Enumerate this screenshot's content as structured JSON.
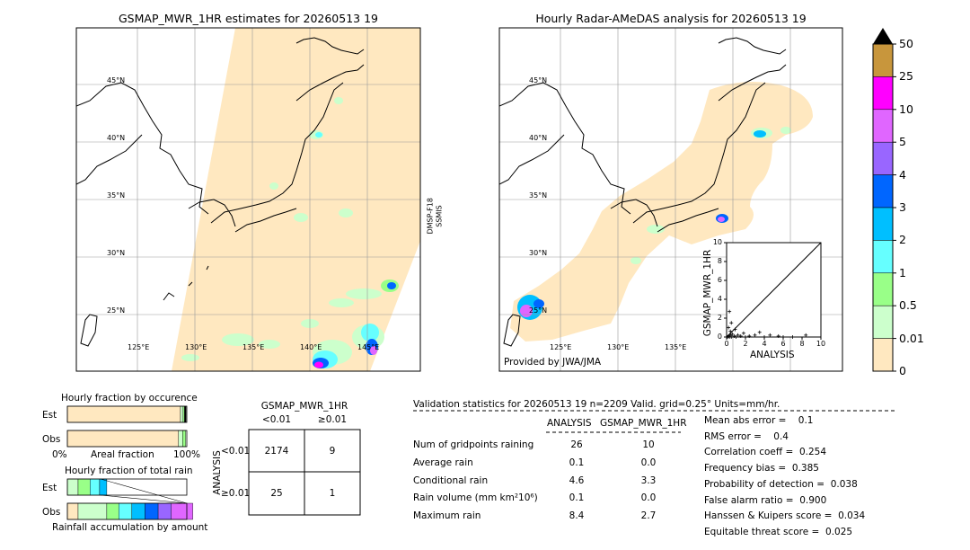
{
  "left_map": {
    "title": "GSMAP_MWR_1HR estimates for 20260513 19",
    "lat_labels": [
      "45°N",
      "40°N",
      "35°N",
      "30°N",
      "25°N"
    ],
    "lon_labels": [
      "125°E",
      "130°E",
      "135°E",
      "140°E",
      "145°E"
    ],
    "sensor_labels": [
      "DMSP-F18",
      "SSMIS"
    ]
  },
  "right_map": {
    "title": "Hourly Radar-AMeDAS analysis for 20260513 19",
    "lat_labels": [
      "45°N",
      "40°N",
      "35°N",
      "30°N",
      "25°N"
    ],
    "lon_labels": [
      "125°E",
      "130°E",
      "135°E"
    ],
    "credit": "Provided by JWA/JMA"
  },
  "colorbar": {
    "labels": [
      "50",
      "25",
      "10",
      "5",
      "4",
      "3",
      "2",
      "1",
      "0.5",
      "0.01",
      "0"
    ],
    "colors": [
      "#c8963c",
      "#ff00ff",
      "#e066ff",
      "#9966ff",
      "#0066ff",
      "#00bfff",
      "#66ffff",
      "#99ff88",
      "#ccffcc",
      "#ffe8c0"
    ]
  },
  "chart_data": [
    {
      "type": "scatter",
      "xlabel": "ANALYSIS",
      "ylabel": "GSMAP_MWR_1HR",
      "xlim": [
        0,
        10
      ],
      "ylim": [
        0,
        10
      ],
      "xticks": [
        "0",
        "2",
        "4",
        "6",
        "8",
        "10"
      ],
      "yticks": [
        "0",
        "2",
        "4",
        "6",
        "8",
        "10"
      ],
      "points": [
        {
          "x": 0.1,
          "y": 0.0
        },
        {
          "x": 0.2,
          "y": 0.1
        },
        {
          "x": 0.3,
          "y": 0.0
        },
        {
          "x": 0.4,
          "y": 0.2
        },
        {
          "x": 0.5,
          "y": 0.0
        },
        {
          "x": 0.6,
          "y": 0.3
        },
        {
          "x": 0.8,
          "y": 0.1
        },
        {
          "x": 1.0,
          "y": 0.0
        },
        {
          "x": 1.2,
          "y": 0.2
        },
        {
          "x": 0.3,
          "y": 2.7
        },
        {
          "x": 0.5,
          "y": 1.5
        },
        {
          "x": 0.2,
          "y": 1.0
        },
        {
          "x": 0.4,
          "y": 0.6
        },
        {
          "x": 1.5,
          "y": 0.1
        },
        {
          "x": 2.0,
          "y": 0.0
        },
        {
          "x": 2.4,
          "y": 0.1
        },
        {
          "x": 3.5,
          "y": 0.5
        },
        {
          "x": 4.0,
          "y": 0.0
        },
        {
          "x": 4.6,
          "y": 0.2
        },
        {
          "x": 5.5,
          "y": 0.1
        },
        {
          "x": 6.0,
          "y": 0.0
        },
        {
          "x": 8.4,
          "y": 0.2
        },
        {
          "x": 7.0,
          "y": 0.0
        },
        {
          "x": 0.9,
          "y": 0.8
        },
        {
          "x": 1.8,
          "y": 0.4
        },
        {
          "x": 3.0,
          "y": 0.2
        }
      ]
    },
    {
      "type": "bar",
      "title": "Hourly fraction by occurence",
      "categories": [
        "Est",
        "Obs"
      ],
      "xticks": [
        "0%",
        "100%"
      ],
      "xlabel": "Areal fraction",
      "segments": {
        "Est": [
          {
            "value": 0.947,
            "color": "#ffe8c0"
          },
          {
            "value": 0.022,
            "color": "#ccffcc"
          },
          {
            "value": 0.012,
            "color": "#99ff88"
          },
          {
            "value": 0.012,
            "color": "#000000"
          }
        ],
        "Obs": [
          {
            "value": 0.93,
            "color": "#ffe8c0"
          },
          {
            "value": 0.035,
            "color": "#ccffcc"
          },
          {
            "value": 0.025,
            "color": "#99ff88"
          }
        ]
      }
    },
    {
      "type": "bar",
      "title": "Hourly fraction of total rain",
      "categories": [
        "Est",
        "Obs"
      ],
      "xlabel": "Rainfall accumulation by amount",
      "segments": {
        "Est": [
          {
            "value": 0.09,
            "color": "#ccffcc"
          },
          {
            "value": 0.1,
            "color": "#99ff88"
          },
          {
            "value": 0.08,
            "color": "#66ffff"
          },
          {
            "value": 0.06,
            "color": "#00bfff"
          }
        ],
        "Obs": [
          {
            "value": 0.09,
            "color": "#ffe8c0"
          },
          {
            "value": 0.24,
            "color": "#ccffcc"
          },
          {
            "value": 0.1,
            "color": "#99ff88"
          },
          {
            "value": 0.11,
            "color": "#66ffff"
          },
          {
            "value": 0.11,
            "color": "#00bfff"
          },
          {
            "value": 0.11,
            "color": "#0066ff"
          },
          {
            "value": 0.11,
            "color": "#9966ff"
          },
          {
            "value": 0.18,
            "color": "#e066ff"
          }
        ]
      }
    },
    {
      "type": "table",
      "title": "GSMAP_MWR_1HR",
      "col_headers": [
        "<0.01",
        "≥0.01"
      ],
      "row_label": "ANALYSIS",
      "row_headers": [
        "<0.01",
        "≥0.01"
      ],
      "cells": [
        [
          "2174",
          "9"
        ],
        [
          "25",
          "1"
        ]
      ]
    }
  ],
  "stats": {
    "header": "Validation statistics for 20260513 19  n=2209 Valid. grid=0.25° Units=mm/hr.",
    "col_analysis": "ANALYSIS",
    "col_gsmap": "GSMAP_MWR_1HR",
    "rows": [
      {
        "label": "Num of gridpoints raining",
        "a": "26",
        "g": "10"
      },
      {
        "label": "Average rain",
        "a": "0.1",
        "g": "0.0"
      },
      {
        "label": "Conditional rain",
        "a": "4.6",
        "g": "3.3"
      },
      {
        "label": "Rain volume (mm km²10⁶)",
        "a": "0.1",
        "g": "0.0"
      },
      {
        "label": "Maximum rain",
        "a": "8.4",
        "g": "2.7"
      }
    ],
    "scores": [
      "Mean abs error =    0.1",
      "RMS error =    0.4",
      "Correlation coeff =  0.254",
      "Frequency bias =  0.385",
      "Probability of detection =  0.038",
      "False alarm ratio =  0.900",
      "Hanssen & Kuipers score =  0.034",
      "Equitable threat score =  0.025"
    ]
  }
}
